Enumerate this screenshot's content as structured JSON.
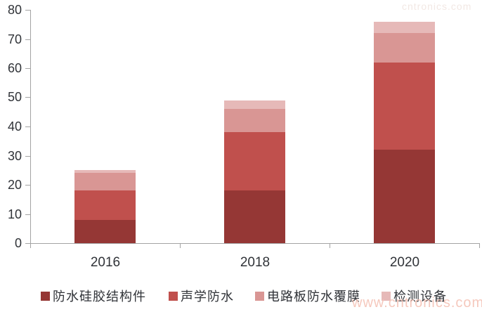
{
  "watermarks": {
    "bottom": "www.cntronics.com",
    "top_right": "cntronics.com"
  },
  "chart_data": {
    "type": "bar",
    "stacked": true,
    "title": "",
    "xlabel": "",
    "ylabel": "",
    "categories": [
      "2016",
      "2018",
      "2020"
    ],
    "series": [
      {
        "name": "防水硅胶结构件",
        "color": "#953735",
        "values": [
          8,
          18,
          32
        ]
      },
      {
        "name": "声学防水",
        "color": "#C0504D",
        "values": [
          10,
          20,
          30
        ]
      },
      {
        "name": "电路板防水覆膜",
        "color": "#D99694",
        "values": [
          6,
          8,
          10
        ]
      },
      {
        "name": "检测设备",
        "color": "#E6B9B8",
        "values": [
          1,
          3,
          4
        ]
      }
    ],
    "totals": [
      25,
      49,
      76
    ],
    "ylim": [
      0,
      80
    ],
    "yticks": [
      0,
      10,
      20,
      30,
      40,
      50,
      60,
      70,
      80
    ],
    "grid": false,
    "legend_position": "bottom",
    "axis_color": "#A3A3A3",
    "label_color": "#303338"
  }
}
